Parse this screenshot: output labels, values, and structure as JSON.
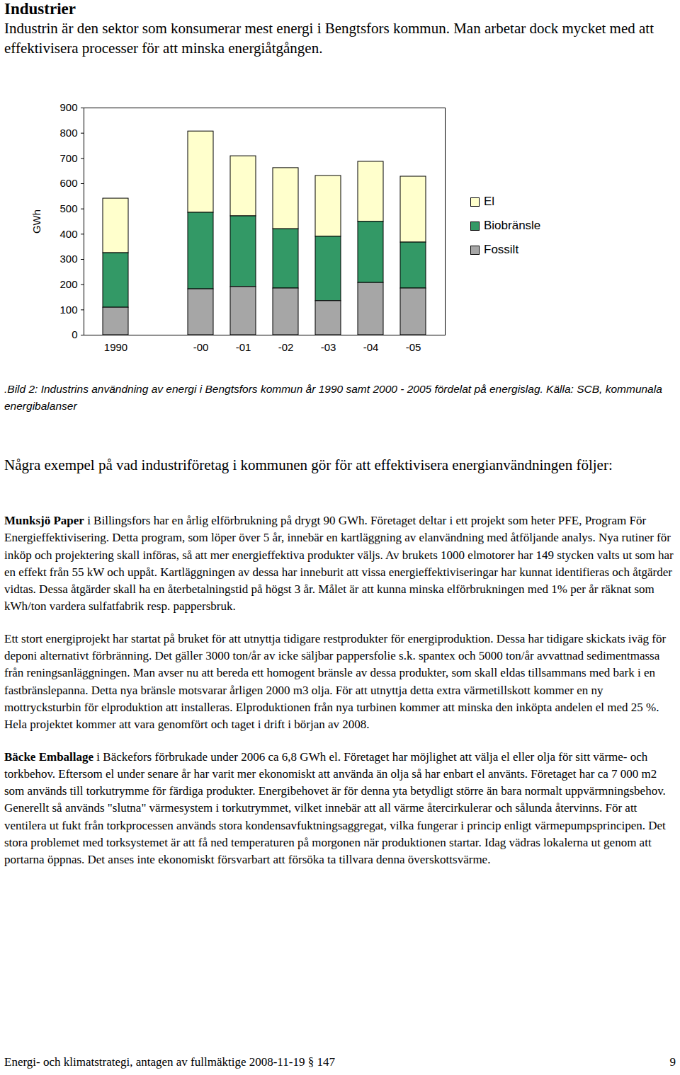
{
  "title": "Industrier",
  "intro": "Industrin är den sektor som konsumerar mest energi i Bengtsfors kommun. Man arbetar dock mycket med att effektivisera processer för att minska energiåtgången.",
  "chart_data": {
    "type": "bar",
    "stacked": true,
    "categories": [
      "1990",
      null,
      "-00",
      "-01",
      "-02",
      "-03",
      "-04",
      "-05"
    ],
    "series": [
      {
        "name": "El",
        "color": "#ffffcc",
        "values": [
          216,
          null,
          322,
          238,
          242,
          241,
          238,
          261
        ]
      },
      {
        "name": "Biobränsle",
        "color": "#339966",
        "values": [
          216,
          null,
          303,
          280,
          235,
          255,
          242,
          182
        ]
      },
      {
        "name": "Fossilt",
        "color": "#a6a6a6",
        "values": [
          109,
          null,
          182,
          191,
          185,
          135,
          207,
          185
        ]
      }
    ],
    "ylabel": "GWh",
    "ylim": [
      0,
      900
    ],
    "yticks": [
      0,
      100,
      200,
      300,
      400,
      500,
      600,
      700,
      800,
      900
    ],
    "grid": false,
    "legend": "right"
  },
  "caption": ".Bild 2: Industrins användning av energi i Bengtsfors kommun år 1990 samt 2000 - 2005 fördelat på energislag. Källa: SCB, kommunala energibalanser",
  "subheading": "Några exempel på vad industriföretag i kommunen gör för att effektivisera energianvändningen följer:",
  "paragraphs": [
    {
      "bold": "Munksjö Paper",
      "text": " i Billingsfors har en årlig elförbrukning på drygt 90 GWh. Företaget deltar i ett projekt som heter PFE, Program För Energieffektivisering. Detta program, som löper över 5 år, innebär en kartläggning av elanvändning med åtföljande analys. Nya rutiner för inköp och projektering skall införas, så att mer energieffektiva produkter väljs. Av brukets 1000 elmotorer har 149 stycken valts ut som har en effekt från 55 kW och uppåt. Kartläggningen av dessa har inneburit att vissa energieffektiviseringar har kunnat identifieras och åtgärder vidtas. Dessa åtgärder skall ha en återbetalningstid på högst 3 år. Målet är att kunna minska elförbrukningen med 1% per år räknat som kWh/ton vardera sulfatfabrik resp. pappersbruk."
    },
    {
      "text": "Ett stort energiprojekt har startat på bruket för att utnyttja tidigare restprodukter för energiproduktion. Dessa har tidigare skickats iväg för deponi alternativt förbränning. Det gäller 3000 ton/år av icke säljbar pappersfolie s.k. spantex och 5000 ton/år avvattnad sedimentmassa från reningsanläggningen. Man avser nu att bereda ett homogent bränsle av dessa produkter, som skall eldas tillsammans med bark i en fastbränslepanna. Detta nya bränsle motsvarar årligen 2000 m3 olja. För att utnyttja detta extra värmetillskott kommer en ny mottrycksturbin för elproduktion att installeras. Elproduktionen från nya turbinen kommer att minska den inköpta andelen el med 25 %. Hela projektet kommer att vara genomfört och taget i drift i början av 2008."
    },
    {
      "bold": "Bäcke Emballage",
      "text": " i Bäckefors förbrukade under 2006 ca 6,8 GWh el. Företaget har möjlighet att välja el eller olja för sitt värme- och torkbehov. Eftersom el under senare år har varit mer ekonomiskt att använda än olja så har enbart el använts. Företaget har ca 7 000 m2 som används till torkutrymme för färdiga produkter. Energibehovet är för denna yta betydligt större än bara normalt uppvärmningsbehov.  Generellt så används \"slutna\" värmesystem i torkutrymmet, vilket innebär att all värme återcirkulerar och sålunda återvinns. För att ventilera ut fukt från torkprocessen används stora kondensavfuktningsaggregat, vilka fungerar i princip enligt värmepumpsprincipen. Det stora problemet med torksystemet är att få ned temperaturen på morgonen när produktionen startar. Idag vädras lokalerna ut genom att portarna öppnas. Det anses inte ekonomiskt försvarbart att försöka ta tillvara denna överskottsvärme."
    }
  ],
  "footer": {
    "text": "Energi- och klimatstrategi, antagen av fullmäktige 2008-11-19 § 147",
    "page": "9"
  }
}
